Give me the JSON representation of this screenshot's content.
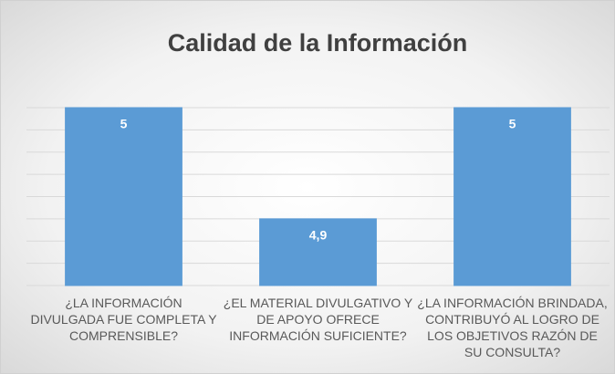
{
  "chart_data": {
    "type": "bar",
    "title": "Calidad de la Información",
    "categories": [
      "¿LA INFORMACIÓN DIVULGADA FUE COMPLETA Y COMPRENSIBLE?",
      "¿EL MATERIAL DIVULGATIVO Y DE APOYO OFRECE INFORMACIÓN SUFICIENTE?",
      "¿LA INFORMACIÓN BRINDADA, CONTRIBUYÓ AL LOGRO DE LOS OBJETIVOS RAZÓN DE SU CONSULTA?"
    ],
    "values": [
      5,
      4.9,
      5
    ],
    "value_labels": [
      "5",
      "4,9",
      "5"
    ],
    "color": "#5b9bd5",
    "ylim": [
      4.84,
      5
    ],
    "yticks": [
      4.84,
      4.86,
      4.88,
      4.9,
      4.92,
      4.94,
      4.96,
      4.98,
      5
    ],
    "grid": true
  }
}
